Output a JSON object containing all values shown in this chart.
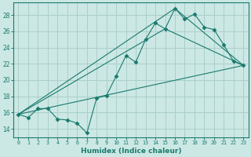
{
  "xlabel": "Humidex (Indice chaleur)",
  "background_color": "#cce8e4",
  "grid_color": "#aacfcb",
  "line_color": "#1a7a6e",
  "xlim": [
    -0.5,
    23.5
  ],
  "ylim": [
    13.0,
    29.5
  ],
  "xticks": [
    0,
    1,
    2,
    3,
    4,
    5,
    6,
    7,
    8,
    9,
    10,
    11,
    12,
    13,
    14,
    15,
    16,
    17,
    18,
    19,
    20,
    21,
    22,
    23
  ],
  "yticks": [
    14,
    16,
    18,
    20,
    22,
    24,
    26,
    28
  ],
  "series1_x": [
    0,
    1,
    2,
    3,
    4,
    5,
    6,
    7,
    8,
    9,
    10,
    11,
    12,
    13,
    14,
    15,
    16,
    17,
    18,
    19,
    20,
    21,
    22,
    23
  ],
  "series1_y": [
    15.8,
    15.4,
    16.5,
    16.5,
    15.2,
    15.1,
    14.7,
    13.5,
    17.8,
    18.1,
    20.5,
    23.0,
    22.2,
    25.0,
    27.0,
    26.3,
    28.8,
    27.5,
    28.1,
    26.5,
    26.2,
    24.3,
    22.3,
    21.8
  ],
  "series2_x": [
    0,
    23
  ],
  "series2_y": [
    15.8,
    21.8
  ],
  "series3_x": [
    0,
    15,
    23
  ],
  "series3_y": [
    15.8,
    26.3,
    21.8
  ],
  "series4_x": [
    0,
    16,
    23
  ],
  "series4_y": [
    15.8,
    28.8,
    21.8
  ]
}
